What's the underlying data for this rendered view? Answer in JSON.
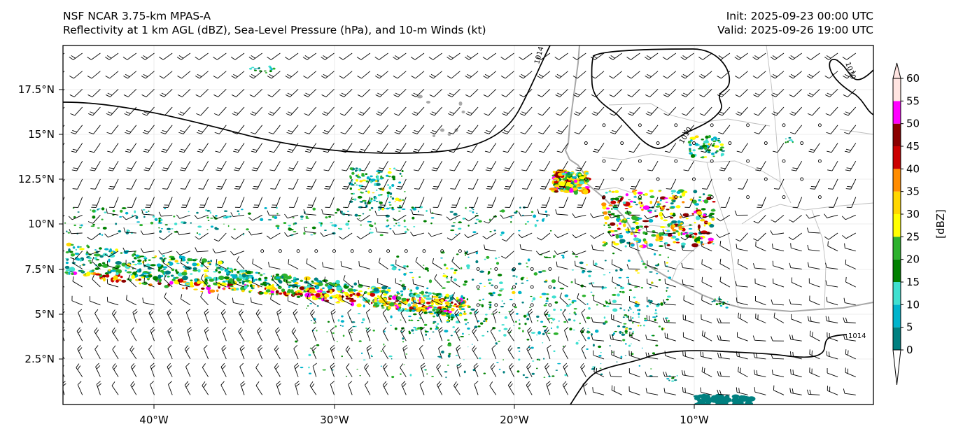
{
  "header": {
    "model": "NSF NCAR 3.75-km MPAS-A",
    "fields": "Reflectivity at 1 km AGL (dBZ), Sea-Level Pressure (hPa), and 10-m Winds (kt)",
    "init": "Init: 2025-09-23 00:00 UTC",
    "valid": "Valid: 2025-09-26 19:00 UTC"
  },
  "axes": {
    "lon_ticks": [
      "40°W",
      "30°W",
      "20°W",
      "10°W"
    ],
    "lat_ticks": [
      "17.5°N",
      "15°N",
      "12.5°N",
      "10°N",
      "7.5°N",
      "5°N",
      "2.5°N"
    ]
  },
  "isobars": {
    "labels": [
      "1014",
      "1010",
      "1010",
      "1014"
    ]
  },
  "colorbar": {
    "label": "[dBZ]",
    "ticks": [
      "60",
      "55",
      "50",
      "45",
      "40",
      "35",
      "30",
      "25",
      "20",
      "15",
      "10",
      "5",
      "0"
    ],
    "colors": [
      "#ffffff",
      "#008080",
      "#00b4cc",
      "#40e0d0",
      "#008000",
      "#2db22d",
      "#ffff00",
      "#ffd700",
      "#ff8c00",
      "#cc0000",
      "#8b0000",
      "#ff00ff",
      "#ffe4e1"
    ]
  }
}
